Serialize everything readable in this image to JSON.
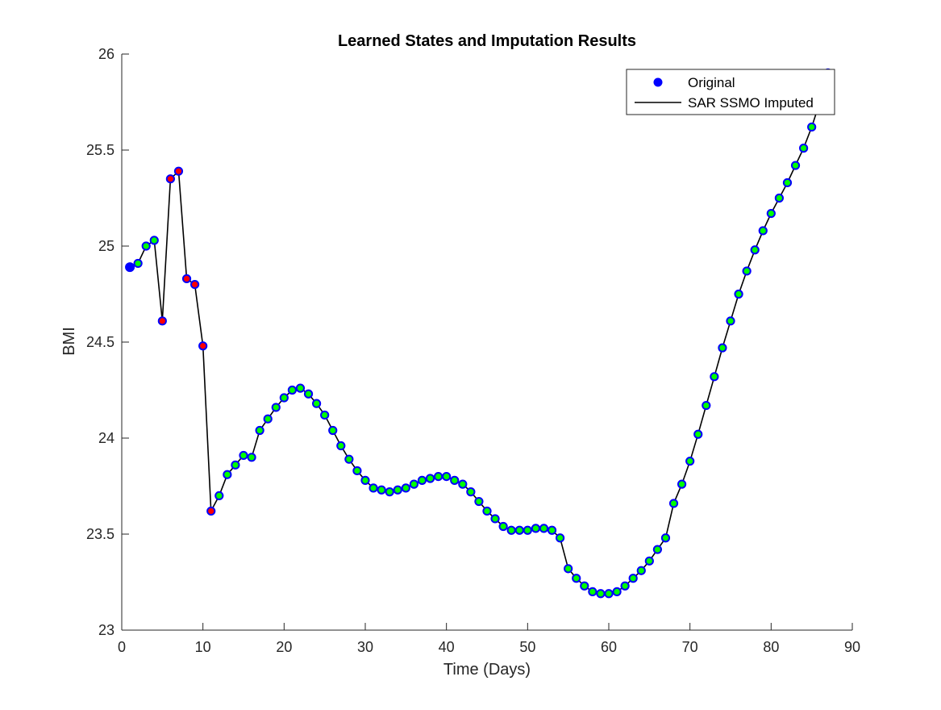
{
  "chart_data": {
    "type": "line",
    "title": "Learned States and Imputation Results",
    "xlabel": "Time (Days)",
    "ylabel": "BMI",
    "xlim": [
      0,
      90
    ],
    "ylim": [
      23,
      26
    ],
    "xticks": [
      "0",
      "10",
      "20",
      "30",
      "40",
      "50",
      "60",
      "70",
      "80",
      "90"
    ],
    "yticks": [
      "23",
      "23.5",
      "24",
      "24.5",
      "25",
      "25.5",
      "26"
    ],
    "grid": false,
    "legend_position": "top-right",
    "legend": [
      "Original",
      "SAR SSMO Imputed"
    ],
    "colors": {
      "original_marker": "#0000ff",
      "imputed_line": "#000000",
      "imputed_fill_missing": "#ff0000",
      "imputed_fill_observed": "#00ff00"
    },
    "series": [
      {
        "name": "Original",
        "style": "markers",
        "x": [
          1,
          87
        ],
        "y": [
          24.89,
          25.9
        ]
      },
      {
        "name": "SAR SSMO Imputed",
        "style": "line-with-markers",
        "x": [
          1,
          2,
          3,
          4,
          5,
          6,
          7,
          8,
          9,
          10,
          11,
          12,
          13,
          14,
          15,
          16,
          17,
          18,
          19,
          20,
          21,
          22,
          23,
          24,
          25,
          26,
          27,
          28,
          29,
          30,
          31,
          32,
          33,
          34,
          35,
          36,
          37,
          38,
          39,
          40,
          41,
          42,
          43,
          44,
          45,
          46,
          47,
          48,
          49,
          50,
          51,
          52,
          53,
          54,
          55,
          56,
          57,
          58,
          59,
          60,
          61,
          62,
          63,
          64,
          65,
          66,
          67,
          68,
          69,
          70,
          71,
          72,
          73,
          74,
          75,
          76,
          77,
          78,
          79,
          80,
          81,
          82,
          83,
          84,
          85,
          86,
          87
        ],
        "y": [
          24.89,
          24.91,
          25.0,
          25.03,
          24.61,
          25.35,
          25.39,
          24.83,
          24.8,
          24.48,
          23.62,
          23.7,
          23.81,
          23.86,
          23.91,
          23.9,
          24.04,
          24.1,
          24.16,
          24.21,
          24.25,
          24.26,
          24.23,
          24.18,
          24.12,
          24.04,
          23.96,
          23.89,
          23.83,
          23.78,
          23.74,
          23.73,
          23.72,
          23.73,
          23.74,
          23.76,
          23.78,
          23.79,
          23.8,
          23.8,
          23.78,
          23.76,
          23.72,
          23.67,
          23.62,
          23.58,
          23.54,
          23.52,
          23.52,
          23.52,
          23.53,
          23.53,
          23.52,
          23.48,
          23.32,
          23.27,
          23.23,
          23.2,
          23.19,
          23.19,
          23.2,
          23.23,
          23.27,
          23.31,
          23.36,
          23.42,
          23.48,
          23.66,
          23.76,
          23.88,
          24.02,
          24.17,
          24.32,
          24.47,
          24.61,
          24.75,
          24.87,
          24.98,
          25.08,
          25.17,
          25.25,
          25.33,
          25.42,
          25.51,
          25.62,
          25.75,
          25.88
        ],
        "marker_fill_missing_x": [
          5,
          6,
          7,
          8,
          9,
          10,
          11
        ]
      }
    ]
  }
}
